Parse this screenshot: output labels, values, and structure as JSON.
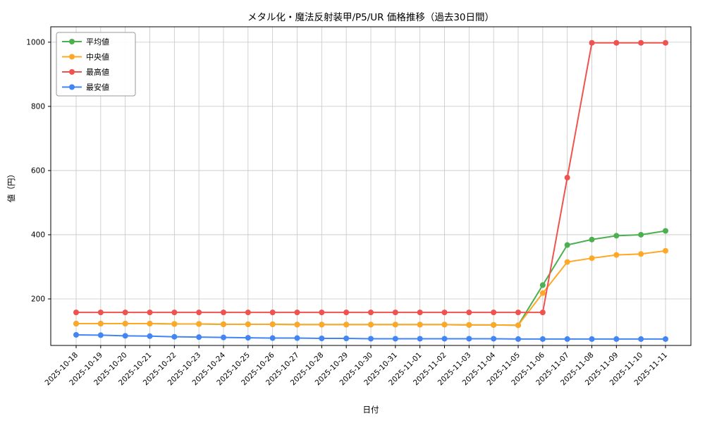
{
  "figure": {
    "title": "メタル化・魔法反射装甲/P5/UR 価格推移（過去30日間）",
    "xlabel": "日付",
    "ylabel": "値（円）"
  },
  "chart_data": {
    "type": "line",
    "title": "メタル化・魔法反射装甲/P5/UR 価格推移（過去30日間）",
    "xlabel": "日付",
    "ylabel": "値（円）",
    "grid": true,
    "legend_position": "upper-left",
    "yticks": [
      200,
      400,
      600,
      800,
      1000
    ],
    "ylim": [
      55,
      1048
    ],
    "x": [
      "2025-10-18",
      "2025-10-19",
      "2025-10-20",
      "2025-10-21",
      "2025-10-22",
      "2025-10-23",
      "2025-10-24",
      "2025-10-25",
      "2025-10-26",
      "2025-10-27",
      "2025-10-28",
      "2025-10-29",
      "2025-10-30",
      "2025-10-31",
      "2025-11-01",
      "2025-11-02",
      "2025-11-03",
      "2025-11-04",
      "2025-11-05",
      "2025-11-06",
      "2025-11-07",
      "2025-11-08",
      "2025-11-09",
      "2025-11-10",
      "2025-11-11"
    ],
    "series": [
      {
        "name": "平均値",
        "color": "#4caf50",
        "values": [
          123,
          123,
          123,
          123,
          122,
          122,
          121,
          121,
          121,
          120,
          120,
          120,
          120,
          120,
          120,
          120,
          119,
          119,
          118,
          243,
          368,
          385,
          397,
          400,
          412
        ]
      },
      {
        "name": "中央値",
        "color": "#ffa726",
        "values": [
          123,
          123,
          123,
          123,
          122,
          122,
          121,
          121,
          121,
          120,
          120,
          120,
          120,
          120,
          120,
          120,
          119,
          119,
          118,
          218,
          315,
          327,
          337,
          340,
          350
        ]
      },
      {
        "name": "最高値",
        "color": "#ef5350",
        "values": [
          158,
          158,
          158,
          158,
          158,
          158,
          158,
          158,
          158,
          158,
          158,
          158,
          158,
          158,
          158,
          158,
          158,
          158,
          158,
          158,
          578,
          998,
          998,
          998,
          998
        ]
      },
      {
        "name": "最安値",
        "color": "#4285f4",
        "values": [
          88,
          87,
          85,
          84,
          82,
          81,
          80,
          79,
          78,
          78,
          77,
          77,
          76,
          76,
          76,
          76,
          76,
          76,
          75,
          75,
          75,
          75,
          75,
          75,
          75
        ]
      }
    ]
  }
}
